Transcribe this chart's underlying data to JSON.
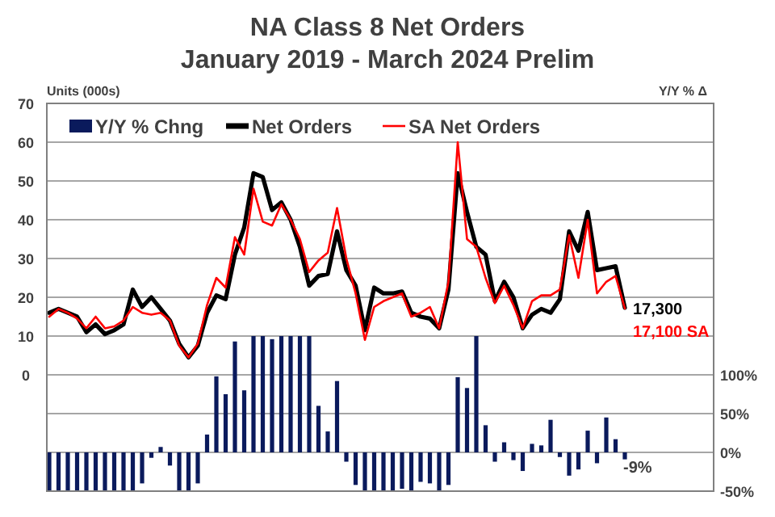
{
  "chart_data": {
    "type": "line",
    "title": "NA Class 8 Net Orders",
    "subtitle": "January 2019 - March 2024 Prelim",
    "ylabel": "Units (000s)",
    "y2label": "Y/Y % Δ",
    "categories": [
      null,
      null,
      null,
      null,
      null,
      null,
      null,
      null,
      null,
      null,
      null,
      null,
      null,
      null,
      null,
      null,
      null,
      null,
      null,
      null,
      null,
      null,
      null,
      null,
      null,
      null,
      null,
      null,
      null,
      null,
      null,
      null,
      null,
      null,
      null,
      null,
      null,
      null,
      null,
      null,
      null,
      null,
      null,
      null,
      null,
      null,
      null,
      null,
      null,
      null,
      null,
      null,
      null,
      null,
      null,
      null,
      null,
      null,
      null,
      null,
      null,
      null,
      null
    ],
    "ylim": [
      -30,
      70
    ],
    "yticks": [
      {
        "value": -20,
        "label": null
      },
      {
        "value": -10,
        "label": null
      },
      0,
      10,
      20,
      30,
      40,
      50,
      60,
      70
    ],
    "y2lim": [
      -50,
      450
    ],
    "y2ticks": [
      {
        "value": -50,
        "label": "-50%"
      },
      {
        "value": 0,
        "label": "0%"
      },
      {
        "value": 50,
        "label": "50%"
      },
      {
        "value": 100,
        "label": "100%"
      }
    ],
    "grid": "y",
    "legend": "top left",
    "annotations": [
      "17,300",
      "17,100 SA"
    ],
    "series": [
      {
        "name": "Y/Y % Chng",
        "type": "bar",
        "axis": "y2",
        "color": "#0a1a5c",
        "values": [
          -50,
          -50,
          -50,
          -50,
          -50,
          -50,
          -50,
          -50,
          -50,
          -50,
          -40,
          -7,
          7,
          -17,
          -50,
          -50,
          -40,
          23,
          98,
          75,
          143,
          80,
          150,
          150,
          146,
          150,
          150,
          150,
          150,
          60,
          27,
          92,
          -12,
          -42,
          -50,
          -50,
          -50,
          -50,
          -47,
          -50,
          -38,
          -40,
          -50,
          -42,
          97,
          83,
          150,
          35,
          -12,
          13,
          -10,
          -24,
          11,
          9,
          42,
          -6,
          -30,
          -22,
          28,
          -14,
          45,
          17,
          -9
        ],
        "value_labels": [
          null,
          null,
          null,
          null,
          null,
          null,
          null,
          null,
          null,
          null,
          null,
          null,
          null,
          null,
          null,
          null,
          null,
          null,
          null,
          null,
          null,
          null,
          null,
          null,
          null,
          null,
          null,
          null,
          null,
          null,
          null,
          null,
          null,
          null,
          null,
          null,
          null,
          null,
          null,
          null,
          null,
          null,
          null,
          null,
          null,
          null,
          null,
          null,
          null,
          null,
          null,
          null,
          null,
          null,
          null,
          null,
          null,
          null,
          null,
          null,
          null,
          null,
          "-9%"
        ]
      },
      {
        "name": "Net Orders",
        "color": "#000000",
        "values": [
          16,
          17,
          16,
          15,
          11,
          13,
          10.5,
          11.5,
          13,
          22,
          17.5,
          20,
          17,
          14,
          8,
          4.5,
          7.5,
          16,
          20.5,
          19.5,
          31,
          38,
          52,
          51,
          42.5,
          44.5,
          40,
          33,
          23,
          25.5,
          26,
          37,
          27,
          23,
          11.5,
          22.5,
          21,
          21,
          21.5,
          16,
          15,
          14.5,
          12,
          22,
          52,
          42,
          33,
          31,
          19,
          24,
          20,
          12,
          15.5,
          17,
          16,
          19.5,
          37,
          32,
          42,
          27,
          27.5,
          28,
          17.3
        ]
      },
      {
        "name": "SA Net Orders",
        "color": "#ff0000",
        "values": [
          15,
          17,
          16,
          14.5,
          12,
          15,
          12,
          12.5,
          14,
          17.5,
          16,
          15.5,
          16,
          14,
          7.5,
          4.5,
          8,
          18,
          25,
          22.5,
          35.5,
          31,
          48,
          39.5,
          38.5,
          44,
          40,
          35,
          26.5,
          29.5,
          31.5,
          43,
          30,
          21,
          9,
          17.5,
          19,
          20,
          21,
          15,
          16,
          17.5,
          12,
          24,
          60,
          35,
          33,
          25,
          18.5,
          23,
          18,
          12,
          19,
          20.5,
          20.5,
          22,
          36,
          25,
          40,
          21,
          24,
          25.5,
          17.1
        ]
      }
    ]
  }
}
